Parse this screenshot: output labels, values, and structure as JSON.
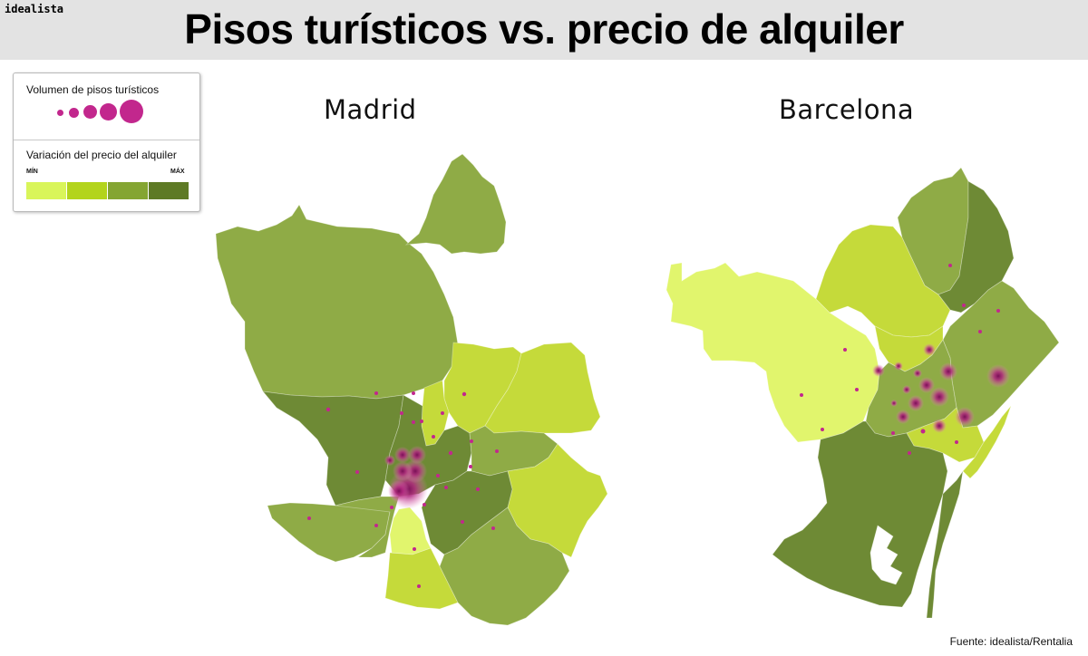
{
  "brand": "idealista",
  "title": "Pisos turísticos vs. precio de alquiler",
  "legend": {
    "volume_title": "Volumen de pisos turísticos",
    "price_title": "Variación del precio del alquiler",
    "min_label": "MÍN",
    "max_label": "MÁX",
    "scale_colors": [
      "#d9f55a",
      "#b3d41c",
      "#84a532",
      "#5e7a25"
    ]
  },
  "maps": {
    "madrid": {
      "label": "Madrid"
    },
    "barcelona": {
      "label": "Barcelona"
    }
  },
  "source": "Fuente: idealista/Rentalia",
  "colors": {
    "tourist_bubble": "#c2278d",
    "header_background": "#e3e3e3"
  }
}
